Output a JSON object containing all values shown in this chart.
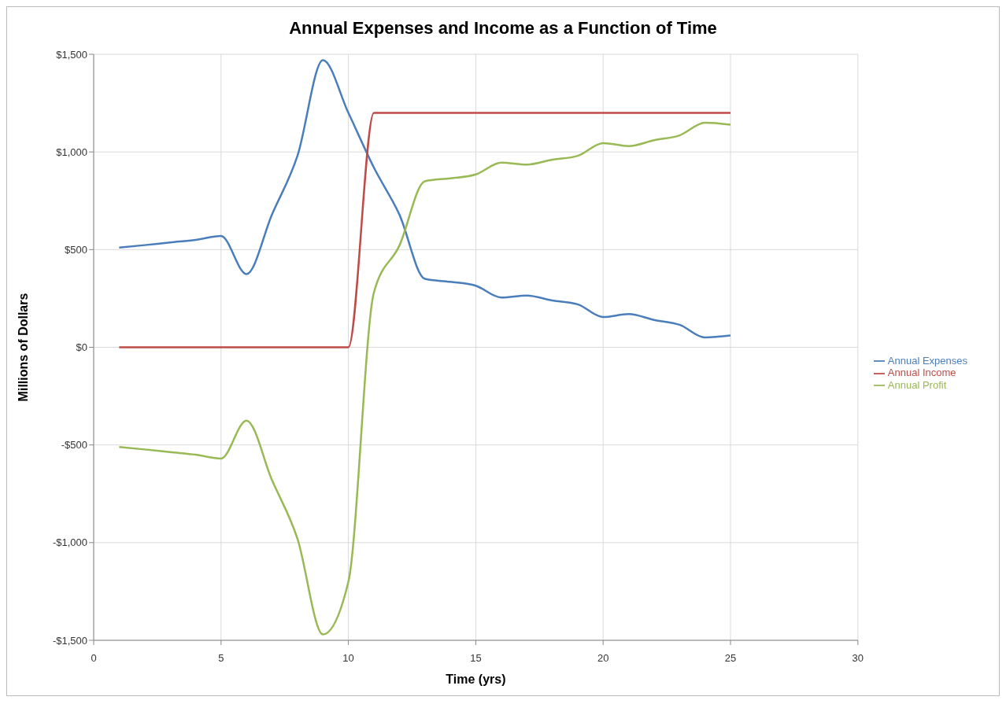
{
  "chart_data": {
    "type": "line",
    "title": "Annual Expenses and Income as a Function of Time",
    "xlabel": "Time (yrs)",
    "ylabel": "Millions of Dollars",
    "x": [
      1,
      2,
      3,
      4,
      5,
      6,
      7,
      8,
      9,
      10,
      11,
      12,
      13,
      14,
      15,
      16,
      17,
      18,
      19,
      20,
      21,
      22,
      23,
      24,
      25
    ],
    "series": [
      {
        "name": "Annual Expenses",
        "color": "#4a7ebb",
        "values": [
          510,
          523,
          537,
          550,
          570,
          375,
          680,
          980,
          1470,
          1200,
          920,
          680,
          350,
          335,
          315,
          255,
          265,
          240,
          220,
          155,
          170,
          140,
          115,
          50,
          60
        ]
      },
      {
        "name": "Annual Income",
        "color": "#be4b48",
        "values": [
          0,
          0,
          0,
          0,
          0,
          0,
          0,
          0,
          0,
          0,
          1200,
          1200,
          1200,
          1200,
          1200,
          1200,
          1200,
          1200,
          1200,
          1200,
          1200,
          1200,
          1200,
          1200,
          1200
        ]
      },
      {
        "name": "Annual Profit",
        "color": "#98b954",
        "values": [
          -510,
          -523,
          -537,
          -550,
          -570,
          -375,
          -680,
          -980,
          -1470,
          -1200,
          280,
          520,
          850,
          865,
          885,
          945,
          935,
          960,
          980,
          1045,
          1030,
          1060,
          1085,
          1150,
          1140
        ]
      }
    ],
    "xlim": [
      0,
      30
    ],
    "xticks": [
      0,
      5,
      10,
      15,
      20,
      25,
      30
    ],
    "ylim": [
      -1500,
      1500
    ],
    "yticks": [
      {
        "value": -1500,
        "label": "-$1,500"
      },
      {
        "value": -1000,
        "label": "-$1,000"
      },
      {
        "value": -500,
        "label": "-$500"
      },
      {
        "value": 0,
        "label": "$0"
      },
      {
        "value": 500,
        "label": "$500"
      },
      {
        "value": 1000,
        "label": "$1,000"
      },
      {
        "value": 1500,
        "label": "$1,500"
      }
    ],
    "grid": true,
    "legend": "right",
    "marker": "none",
    "line_style": "solid"
  }
}
